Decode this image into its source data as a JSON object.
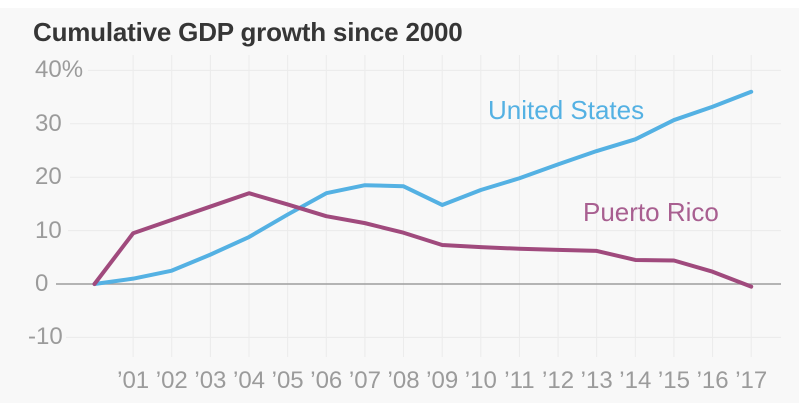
{
  "title": "Cumulative GDP growth since 2000",
  "chart_data": {
    "type": "line",
    "title": "Cumulative GDP growth since 2000",
    "xlabel": "",
    "ylabel": "",
    "x": [
      2000,
      2001,
      2002,
      2003,
      2004,
      2005,
      2006,
      2007,
      2008,
      2009,
      2010,
      2011,
      2012,
      2013,
      2014,
      2015,
      2016,
      2017
    ],
    "x_tick_labels": [
      "’01",
      "’02",
      "’03",
      "’04",
      "’05",
      "’06",
      "’07",
      "’08",
      "’09",
      "’10",
      "’11",
      "’12",
      "’13",
      "’14",
      "’15",
      "’16",
      "’17"
    ],
    "y_ticks": [
      {
        "label": "40%",
        "value": 40
      },
      {
        "label": "30",
        "value": 30
      },
      {
        "label": "20",
        "value": 20
      },
      {
        "label": "10",
        "value": 10
      },
      {
        "label": "0",
        "value": 0
      },
      {
        "label": "-10",
        "value": -10
      }
    ],
    "ylim": [
      -10,
      40
    ],
    "grid": true,
    "legend_position": "inline-labels",
    "series": [
      {
        "name": "United States",
        "color": "#54b1e3",
        "values": [
          0,
          1.0,
          2.5,
          5.5,
          8.8,
          13.0,
          17.0,
          18.5,
          18.3,
          14.8,
          17.6,
          19.8,
          22.4,
          24.9,
          27.1,
          30.7,
          33.2,
          36.0
        ]
      },
      {
        "name": "Puerto Rico",
        "color": "#a04a7d",
        "values": [
          0,
          9.5,
          12.0,
          14.5,
          17.0,
          14.9,
          12.7,
          11.4,
          9.6,
          7.3,
          6.9,
          6.6,
          6.4,
          6.2,
          4.5,
          4.4,
          2.3,
          -0.5
        ]
      }
    ]
  },
  "inline_labels": [
    {
      "text": "United States",
      "color": "#54b1e3"
    },
    {
      "text": "Puerto Rico",
      "color": "#a85f90"
    }
  ],
  "colors": {
    "background": "#f8f8f8",
    "top_strip": "#ffffff",
    "gridline": "#ebebeb",
    "zero_line": "#9e9e9e",
    "title_text": "#363636",
    "tick_text": "#9b9b9b",
    "us_line": "#54b1e3",
    "pr_line": "#a04a7d"
  }
}
